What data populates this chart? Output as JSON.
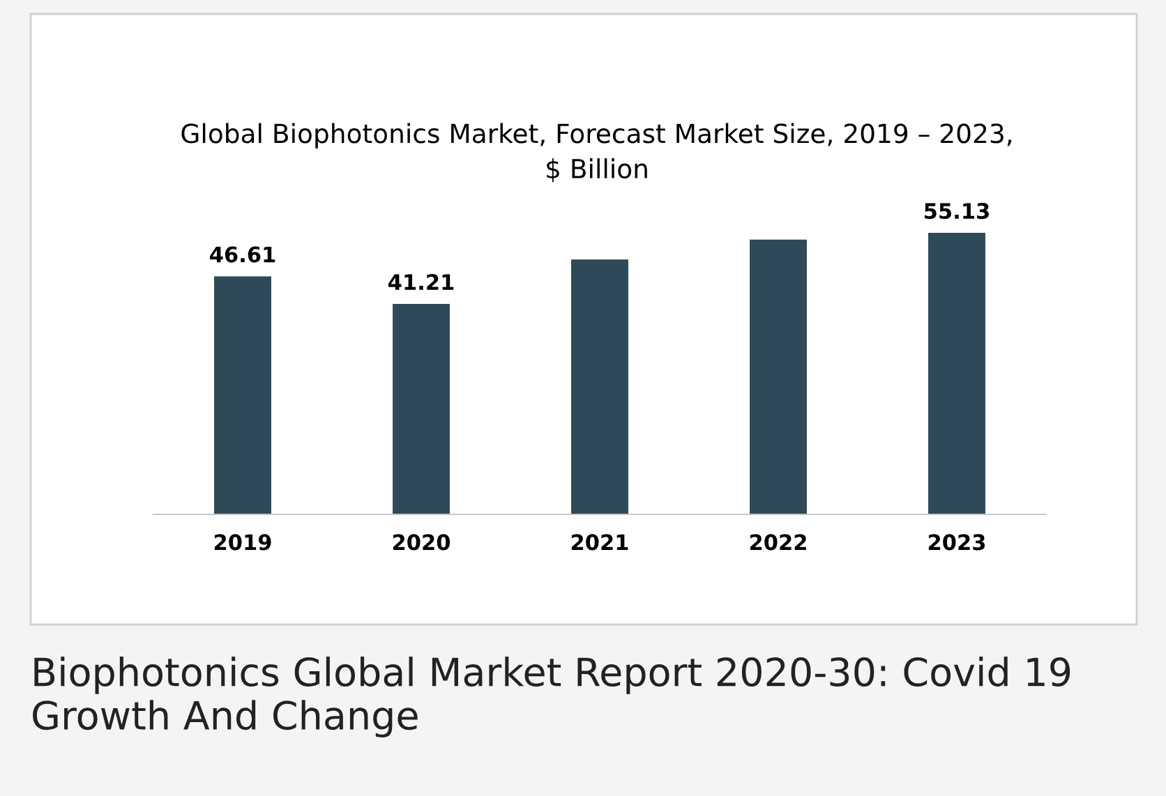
{
  "chart_data": {
    "type": "bar",
    "title": "Global Biophotonics Market, Forecast Market Size, 2019 – 2023,\n$ Billion",
    "categories": [
      "2019",
      "2020",
      "2021",
      "2022",
      "2023"
    ],
    "values": [
      46.61,
      41.21,
      49.9,
      53.8,
      55.13
    ],
    "value_labels": [
      "46.61",
      "41.21",
      null,
      null,
      "55.13"
    ],
    "color": "#2e4a59",
    "annotations": [
      "Biophotonics Global Market Report 2020-30: Covid 19 Growth And Change"
    ]
  }
}
